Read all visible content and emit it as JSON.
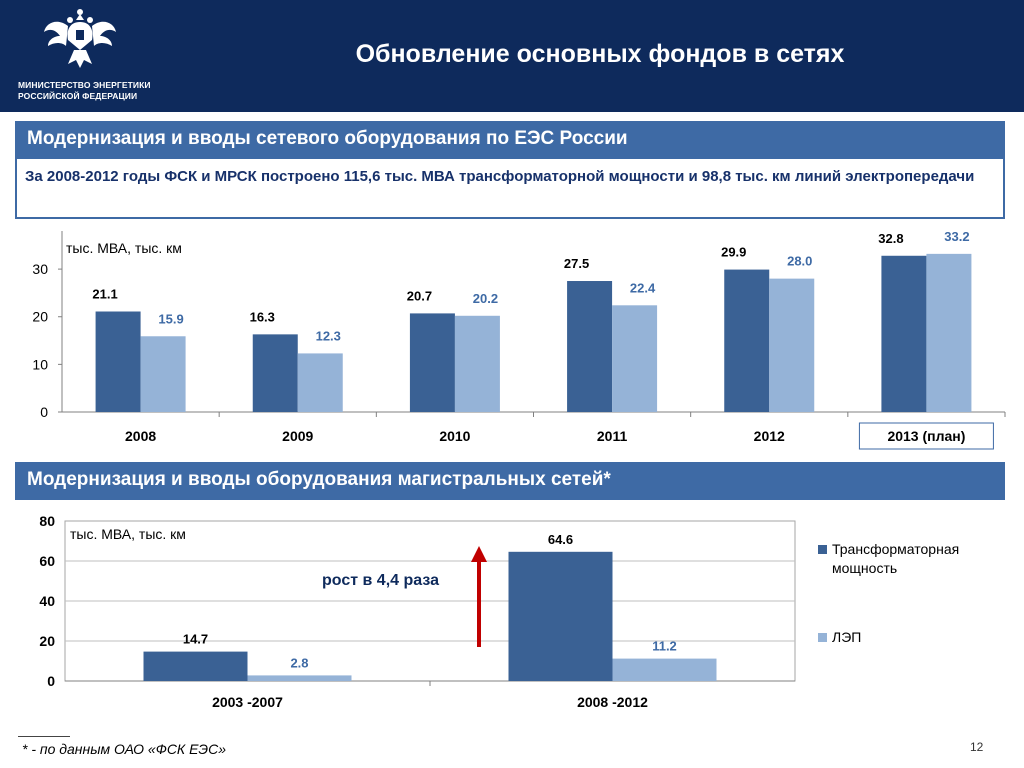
{
  "header": {
    "title": "Обновление основных фондов в сетях",
    "ministry_line1": "МИНИСТЕРСТВО ЭНЕРГЕТИКИ",
    "ministry_line2": "РОССИЙСКОЙ ФЕДЕРАЦИИ",
    "emblem_icon": "double-headed-eagle-emblem"
  },
  "section1": {
    "title": "Модернизация и вводы сетевого оборудования по ЕЭС России",
    "info": "За 2008-2012 годы ФСК и МРСК построено 115,6  тыс. МВА трансформаторной мощности и 98,8 тыс. км линий электропередачи"
  },
  "section2": {
    "title": "Модернизация и вводы оборудования магистральных сетей*"
  },
  "growth_note": "рост в 4,4 раза",
  "footnote": "* - по данным ОАО «ФСК ЕЭС»",
  "page_number": "12",
  "colors": {
    "header": "#0e2a5c",
    "section_bar": "#3e6aa5",
    "series_dark": "#3a6194",
    "series_light": "#95b3d7",
    "label_light": "#3e6aa5",
    "arrow": "#c00000"
  },
  "chart_data": [
    {
      "type": "bar",
      "unit_label": "тыс. МВА, тыс. км",
      "categories": [
        "2008",
        "2009",
        "2010",
        "2011",
        "2012",
        "2013 (план)"
      ],
      "series": [
        {
          "values": [
            21.1,
            16.3,
            20.7,
            27.5,
            29.9,
            32.8
          ]
        },
        {
          "values": [
            15.9,
            12.3,
            20.2,
            22.4,
            28.0,
            33.2
          ]
        }
      ],
      "value_labels": [
        [
          "21.1",
          "16.3",
          "20.7",
          "27.5",
          "29.9",
          "32.8"
        ],
        [
          "15.9",
          "12.3",
          "20.2",
          "22.4",
          "28.0",
          "33.2"
        ]
      ],
      "ylim": [
        0,
        38
      ],
      "yticks": [
        "0",
        "10",
        "20",
        "30"
      ],
      "grid": false
    },
    {
      "type": "bar",
      "unit_label": "тыс. МВА, тыс. км",
      "categories": [
        "2003 -2007",
        "2008 -2012"
      ],
      "series": [
        {
          "name": "Трансформаторная мощность",
          "values": [
            14.7,
            64.6
          ]
        },
        {
          "name": "ЛЭП",
          "values": [
            2.8,
            11.2
          ]
        }
      ],
      "value_labels": [
        [
          "14.7",
          "64.6"
        ],
        [
          "2.8",
          "11.2"
        ]
      ],
      "ylim": [
        0,
        80
      ],
      "yticks": [
        "0",
        "20",
        "40",
        "60",
        "80"
      ],
      "grid": true,
      "legend": "right"
    }
  ]
}
